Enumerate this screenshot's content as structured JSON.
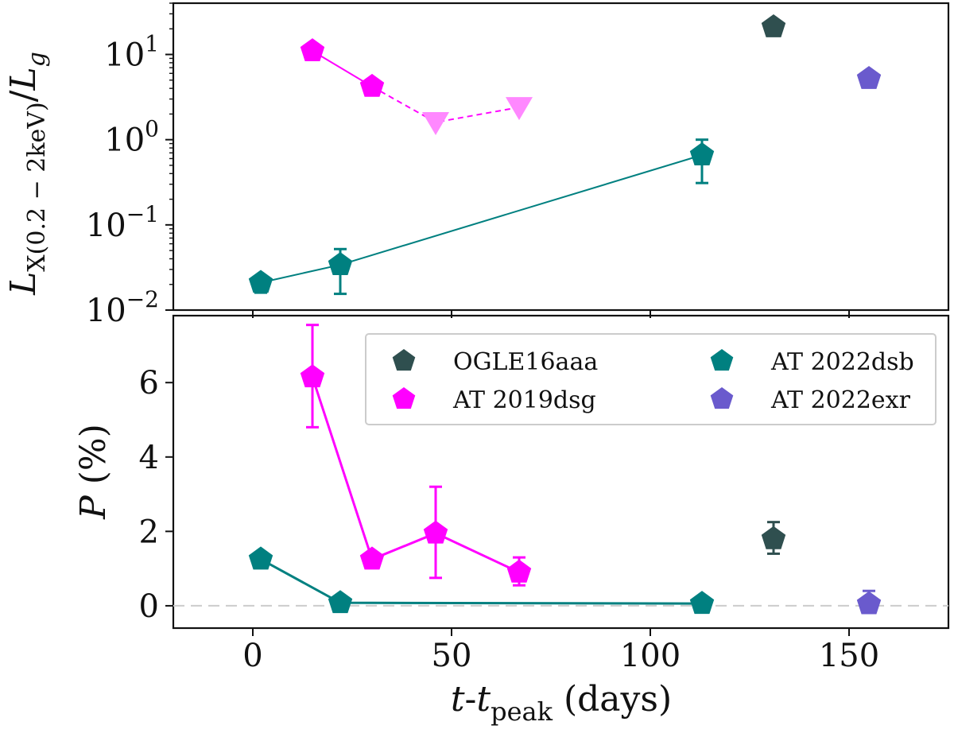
{
  "chart_data": [
    {
      "panel": "top",
      "type": "scatter",
      "yscale": "log",
      "ylabel": {
        "var": "L",
        "sub": "X(0.2 − 2keV)",
        "slash": "/",
        "den": "L",
        "den_sub": "g"
      },
      "ylim": [
        0.01,
        40
      ],
      "xlim": [
        -20,
        175
      ],
      "yticks": [
        {
          "value": 0.01,
          "base": "10",
          "exp": "−2"
        },
        {
          "value": 0.1,
          "base": "10",
          "exp": "−1"
        },
        {
          "value": 1,
          "base": "10",
          "exp": "0"
        },
        {
          "value": 10,
          "base": "10",
          "exp": "1"
        }
      ],
      "series": [
        {
          "name": "OGLE16aaa",
          "color": "#2f4f4f",
          "connect": false,
          "points": [
            {
              "x": 131,
              "y": 21
            }
          ]
        },
        {
          "name": "AT 2019dsg",
          "color": "#ff00ff",
          "connect": true,
          "points": [
            {
              "x": 15,
              "y": 11
            },
            {
              "x": 30,
              "y": 4.2
            }
          ]
        },
        {
          "name": "AT 2019dsg upper limits",
          "color": "#ff88ff",
          "marker": "triangle-down",
          "dashed": true,
          "connect_from": {
            "x": 30,
            "y": 4.2
          },
          "points": [
            {
              "x": 46,
              "y": 1.6
            },
            {
              "x": 67,
              "y": 2.4
            }
          ]
        },
        {
          "name": "AT 2022dsb",
          "color": "#008080",
          "connect": true,
          "points": [
            {
              "x": 2,
              "y": 0.021,
              "ylo": 0.016,
              "yhi": 0.021
            },
            {
              "x": 22,
              "y": 0.034,
              "ylo": 0.0155,
              "yhi": 0.052
            },
            {
              "x": 113,
              "y": 0.66,
              "ylo": 0.31,
              "yhi": 1.0
            }
          ]
        },
        {
          "name": "AT 2022exr",
          "color": "#6a5acd",
          "connect": false,
          "points": [
            {
              "x": 155,
              "y": 5.2
            }
          ]
        }
      ]
    },
    {
      "panel": "bottom",
      "type": "scatter",
      "ylabel": {
        "var": "P",
        "rest": " (%)"
      },
      "xlabel": {
        "t": "t",
        "dash": "-",
        "t2": "t",
        "sub": "peak",
        "rest": " (days)"
      },
      "ylim": [
        -0.6,
        7.8
      ],
      "xlim": [
        -20,
        175
      ],
      "yticks": [
        0,
        2,
        4,
        6
      ],
      "xticks": [
        0,
        50,
        100,
        150
      ],
      "zero_line": true,
      "series": [
        {
          "name": "OGLE16aaa",
          "color": "#2f4f4f",
          "connect": false,
          "points": [
            {
              "x": 131,
              "y": 1.8,
              "ylo": 1.4,
              "yhi": 2.25
            }
          ]
        },
        {
          "name": "AT 2019dsg",
          "color": "#ff00ff",
          "connect": true,
          "points": [
            {
              "x": 15,
              "y": 6.15,
              "ylo": 4.8,
              "yhi": 7.55
            },
            {
              "x": 30,
              "y": 1.25
            },
            {
              "x": 46,
              "y": 1.95,
              "ylo": 0.75,
              "yhi": 3.2
            },
            {
              "x": 67,
              "y": 0.9,
              "ylo": 0.55,
              "yhi": 1.3
            }
          ]
        },
        {
          "name": "AT 2022dsb",
          "color": "#008080",
          "connect": true,
          "points": [
            {
              "x": 2,
              "y": 1.25
            },
            {
              "x": 22,
              "y": 0.08
            },
            {
              "x": 113,
              "y": 0.06
            }
          ]
        },
        {
          "name": "AT 2022exr",
          "color": "#6a5acd",
          "connect": false,
          "points": [
            {
              "x": 155,
              "y": 0.05,
              "ylo": 0.0,
              "yhi": 0.4
            }
          ]
        }
      ]
    }
  ],
  "legend": {
    "placement": "top-right of bottom panel",
    "entries": [
      {
        "label": "OGLE16aaa",
        "color": "#2f4f4f"
      },
      {
        "label": "AT 2022dsb",
        "color": "#008080"
      },
      {
        "label": "AT 2019dsg",
        "color": "#ff00ff"
      },
      {
        "label": "AT 2022exr",
        "color": "#6a5acd"
      }
    ]
  }
}
